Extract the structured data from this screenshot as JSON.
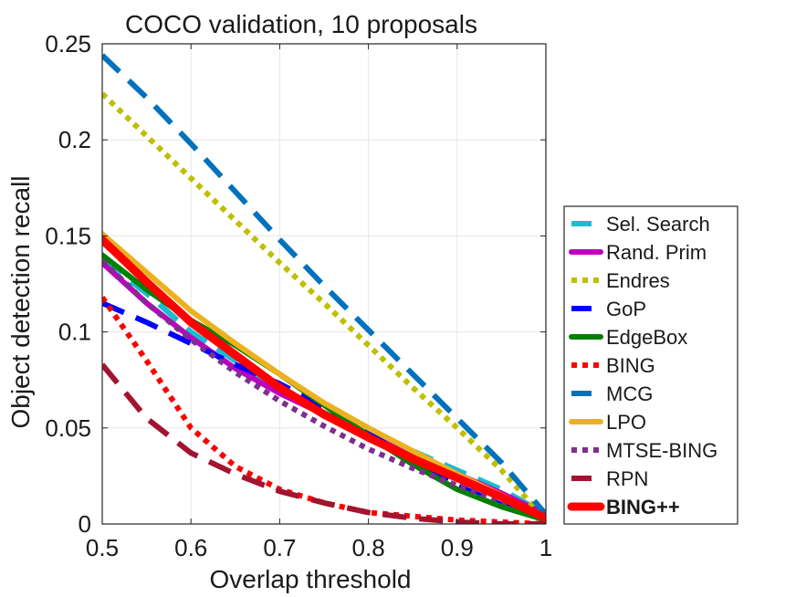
{
  "chart_data": {
    "type": "line",
    "title": "COCO validation, 10 proposals",
    "xlabel": "Overlap threshold",
    "ylabel": "Object detection recall",
    "xlim": [
      0.5,
      1.0
    ],
    "ylim": [
      0,
      0.25
    ],
    "xticks": [
      0.5,
      0.6,
      0.7,
      0.8,
      0.9,
      1.0
    ],
    "xtick_labels": [
      "0.5",
      "0.6",
      "0.7",
      "0.8",
      "0.9",
      "1"
    ],
    "yticks": [
      0,
      0.05,
      0.1,
      0.15,
      0.2,
      0.25
    ],
    "ytick_labels": [
      "0",
      "0.05",
      "0.1",
      "0.15",
      "0.2",
      "0.25"
    ],
    "grid": true,
    "legend_position": "outside-right",
    "x": [
      0.5,
      0.55,
      0.6,
      0.65,
      0.7,
      0.75,
      0.8,
      0.85,
      0.9,
      0.95,
      1.0
    ],
    "series": [
      {
        "name": "Sel. Search",
        "color": "#17becf",
        "style": "dashed",
        "bold": false,
        "values": [
          0.138,
          0.12,
          0.1,
          0.085,
          0.07,
          0.058,
          0.047,
          0.038,
          0.028,
          0.018,
          0.005
        ]
      },
      {
        "name": "Rand. Prim",
        "color": "#bf00bf",
        "style": "solid",
        "bold": false,
        "values": [
          0.136,
          0.115,
          0.097,
          0.081,
          0.068,
          0.057,
          0.046,
          0.036,
          0.026,
          0.016,
          0.005
        ]
      },
      {
        "name": "Endres",
        "color": "#bfbf00",
        "style": "dotted",
        "bold": false,
        "values": [
          0.224,
          0.202,
          0.18,
          0.158,
          0.136,
          0.115,
          0.093,
          0.071,
          0.05,
          0.028,
          0.002
        ]
      },
      {
        "name": "GoP",
        "color": "#0000ff",
        "style": "dashed",
        "bold": false,
        "values": [
          0.115,
          0.105,
          0.094,
          0.083,
          0.073,
          0.061,
          0.047,
          0.034,
          0.02,
          0.01,
          0.004
        ]
      },
      {
        "name": "EdgeBox",
        "color": "#008000",
        "style": "solid",
        "bold": false,
        "values": [
          0.14,
          0.122,
          0.106,
          0.093,
          0.078,
          0.062,
          0.046,
          0.031,
          0.018,
          0.009,
          0.002
        ]
      },
      {
        "name": "BING",
        "color": "#ff0000",
        "style": "dotted",
        "bold": false,
        "values": [
          0.118,
          0.085,
          0.05,
          0.03,
          0.018,
          0.011,
          0.006,
          0.004,
          0.002,
          0.001,
          0.0
        ]
      },
      {
        "name": "MCG",
        "color": "#0072bd",
        "style": "dashed",
        "bold": false,
        "values": [
          0.244,
          0.222,
          0.198,
          0.173,
          0.148,
          0.124,
          0.101,
          0.078,
          0.055,
          0.032,
          0.005
        ]
      },
      {
        "name": "LPO",
        "color": "#edb120",
        "style": "solid",
        "bold": false,
        "values": [
          0.151,
          0.131,
          0.111,
          0.094,
          0.078,
          0.063,
          0.05,
          0.038,
          0.026,
          0.015,
          0.003
        ]
      },
      {
        "name": "MTSE-BING",
        "color": "#7e2f8e",
        "style": "dotted",
        "bold": false,
        "values": [
          0.137,
          0.115,
          0.096,
          0.079,
          0.064,
          0.051,
          0.039,
          0.029,
          0.02,
          0.012,
          0.004
        ]
      },
      {
        "name": "RPN",
        "color": "#a2142f",
        "style": "dashed",
        "bold": false,
        "values": [
          0.083,
          0.055,
          0.037,
          0.026,
          0.017,
          0.011,
          0.006,
          0.003,
          0.001,
          0.0,
          0.0
        ]
      },
      {
        "name": "BING++",
        "color": "#ff0000",
        "style": "solid",
        "bold": true,
        "values": [
          0.148,
          0.126,
          0.105,
          0.088,
          0.071,
          0.057,
          0.045,
          0.034,
          0.024,
          0.014,
          0.003
        ]
      }
    ]
  }
}
